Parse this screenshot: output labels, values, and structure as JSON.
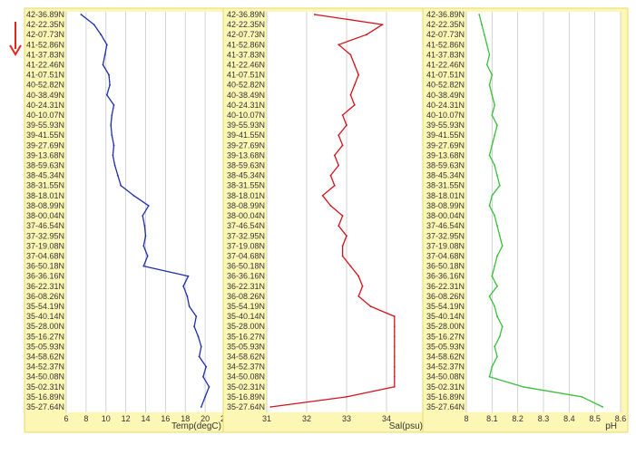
{
  "colors": {
    "panel_bg": "#fdf7b6",
    "plot_bg": "#ffffff",
    "grid": "#c8c8c8",
    "frame": "#e8d86a",
    "arrow": "#e8241c"
  },
  "direction_arrow": {
    "icon": "down-arrow-icon"
  },
  "chart_data": [
    {
      "type": "line",
      "orientation": "vertical-profile",
      "xlabel": "Temp(degC)",
      "xlim": [
        6,
        22
      ],
      "xticks": [
        6,
        8,
        10,
        12,
        14,
        16,
        18,
        20,
        22
      ],
      "color": "#1f2fa8",
      "latitude_labels": [
        "42-36.89N",
        "42-22.35N",
        "42-07.73N",
        "41-52.86N",
        "41-37.83N",
        "41-22.46N",
        "41-07.51N",
        "40-52.82N",
        "40-38.49N",
        "40-24.31N",
        "40-10.07N",
        "39-55.93N",
        "39-41.55N",
        "39-27.69N",
        "39-13.68N",
        "38-59.63N",
        "38-45.34N",
        "38-31.55N",
        "38-18.01N",
        "38-08.99N",
        "38-00.04N",
        "37-46.54N",
        "37-32.95N",
        "37-19.08N",
        "37-04.68N",
        "36-50.18N",
        "36-36.16N",
        "36-22.31N",
        "36-08.26N",
        "35-54.19N",
        "35-40.14N",
        "35-28.00N",
        "35-16.27N",
        "35-05.93N",
        "34-58.62N",
        "34-52.37N",
        "34-50.08N",
        "35-02.31N",
        "35-16.89N",
        "35-27.64N"
      ],
      "values": [
        7.5,
        8.8,
        9.5,
        10.1,
        9.9,
        9.7,
        10.3,
        10.4,
        10.1,
        10.8,
        10.6,
        10.5,
        10.6,
        10.8,
        10.7,
        10.9,
        11.2,
        11.5,
        12.8,
        14.3,
        13.7,
        13.9,
        14.0,
        13.8,
        14.2,
        13.8,
        18.3,
        17.8,
        18.2,
        18.4,
        19.1,
        18.9,
        19.3,
        19.6,
        19.4,
        20.1,
        19.8,
        20.4,
        20.0,
        19.6
      ]
    },
    {
      "type": "line",
      "orientation": "vertical-profile",
      "xlabel": "Sal(psu)",
      "xlim": [
        31,
        35
      ],
      "xticks": [
        31,
        32,
        33,
        34,
        35
      ],
      "color": "#d0141c",
      "latitude_labels": [
        "42-36.89N",
        "42-22.35N",
        "42-07.73N",
        "41-52.86N",
        "41-37.83N",
        "41-22.46N",
        "41-07.51N",
        "40-52.82N",
        "40-38.49N",
        "40-24.31N",
        "40-10.07N",
        "39-55.93N",
        "39-41.55N",
        "39-27.69N",
        "39-13.68N",
        "38-59.63N",
        "38-45.34N",
        "38-31.55N",
        "38-18.01N",
        "38-08.99N",
        "38-00.04N",
        "37-46.54N",
        "37-32.95N",
        "37-19.08N",
        "37-04.68N",
        "36-50.18N",
        "36-36.16N",
        "36-22.31N",
        "36-08.26N",
        "35-54.19N",
        "35-40.14N",
        "35-28.00N",
        "35-16.27N",
        "35-05.93N",
        "34-58.62N",
        "34-52.37N",
        "34-50.08N",
        "35-02.31N",
        "35-16.89N",
        "35-27.64N"
      ],
      "values": [
        32.2,
        33.9,
        33.5,
        32.8,
        33.1,
        33.2,
        33.3,
        33.2,
        33.1,
        33.2,
        32.9,
        33.0,
        32.8,
        32.9,
        32.7,
        32.8,
        32.6,
        32.7,
        32.4,
        32.6,
        32.9,
        32.8,
        33.0,
        32.9,
        32.9,
        33.1,
        33.3,
        33.4,
        33.3,
        33.6,
        34.2,
        34.2,
        34.2,
        34.2,
        34.2,
        34.2,
        34.2,
        34.2,
        33.0,
        31.1
      ]
    },
    {
      "type": "line",
      "orientation": "vertical-profile",
      "xlabel": "pH",
      "xlim": [
        8.0,
        8.6
      ],
      "xticks": [
        8,
        8.1,
        8.2,
        8.3,
        8.4,
        8.5,
        8.6
      ],
      "color": "#3cbf3c",
      "latitude_labels": [
        "42-36.89N",
        "42-22.35N",
        "42-07.73N",
        "41-52.86N",
        "41-37.83N",
        "41-22.46N",
        "41-07.51N",
        "40-52.82N",
        "40-38.49N",
        "40-24.31N",
        "40-10.07N",
        "39-55.93N",
        "39-41.55N",
        "39-27.69N",
        "39-13.68N",
        "38-59.63N",
        "38-45.34N",
        "38-31.55N",
        "38-18.01N",
        "38-08.99N",
        "38-00.04N",
        "37-46.54N",
        "37-32.95N",
        "37-19.08N",
        "37-04.68N",
        "36-50.18N",
        "36-36.16N",
        "36-22.31N",
        "36-08.26N",
        "35-54.19N",
        "35-40.14N",
        "35-28.00N",
        "35-16.27N",
        "35-05.93N",
        "34-58.62N",
        "34-52.37N",
        "34-50.08N",
        "35-02.31N",
        "35-16.89N",
        "35-27.64N"
      ],
      "values": [
        8.05,
        8.06,
        8.07,
        8.08,
        8.09,
        8.08,
        8.1,
        8.09,
        8.1,
        8.11,
        8.1,
        8.12,
        8.11,
        8.1,
        8.09,
        8.11,
        8.12,
        8.13,
        8.1,
        8.09,
        8.11,
        8.12,
        8.13,
        8.14,
        8.12,
        8.11,
        8.1,
        8.12,
        8.09,
        8.11,
        8.12,
        8.14,
        8.13,
        8.11,
        8.12,
        8.1,
        8.09,
        8.22,
        8.45,
        8.53
      ]
    }
  ]
}
